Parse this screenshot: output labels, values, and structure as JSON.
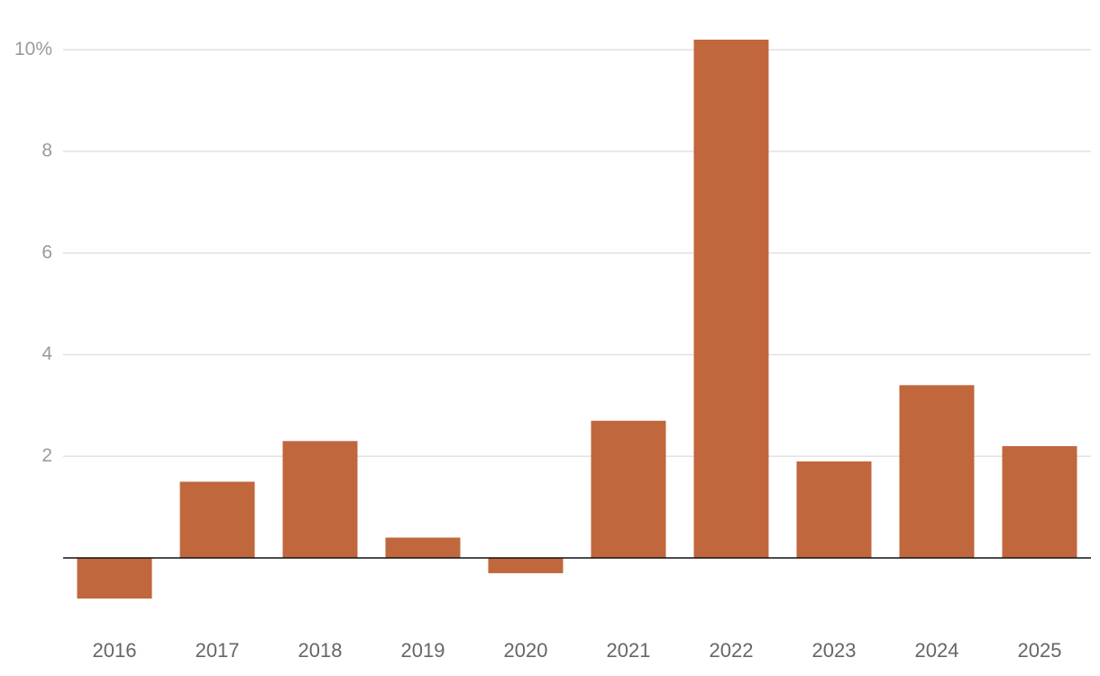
{
  "chart_data": {
    "type": "bar",
    "categories": [
      "2016",
      "2017",
      "2018",
      "2019",
      "2020",
      "2021",
      "2022",
      "2023",
      "2024",
      "2025"
    ],
    "values": [
      -0.8,
      1.5,
      2.3,
      0.4,
      -0.3,
      2.7,
      10.2,
      1.9,
      3.4,
      2.2
    ],
    "color": "#c0673d",
    "ylim": [
      -1.3,
      10.2
    ],
    "yticks": [
      2,
      4,
      6,
      8,
      {
        "value": 10,
        "label": "10%"
      }
    ],
    "grid": true
  }
}
